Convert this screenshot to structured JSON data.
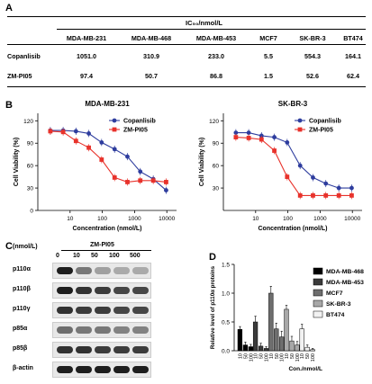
{
  "panels": {
    "A": "A",
    "B": "B",
    "C": "C",
    "D": "D"
  },
  "table": {
    "unit_label": "IC₅₀/nmol/L",
    "columns": [
      "MDA-MB-231",
      "MDA-MB-468",
      "MDA-MB-453",
      "MCF7",
      "SK-BR-3",
      "BT474"
    ],
    "rows": [
      {
        "label": "Copanlisib",
        "values": [
          "1051.0",
          "310.9",
          "233.0",
          "5.5",
          "554.3",
          "164.1"
        ]
      },
      {
        "label": "ZM-PI05",
        "values": [
          "97.4",
          "50.7",
          "86.8",
          "1.5",
          "52.6",
          "62.4"
        ]
      }
    ]
  },
  "chart_data": [
    {
      "type": "scatter",
      "title": "MDA-MB-231",
      "xlabel": "Concentration (nmol/L)",
      "ylabel": "Cell Viability (%)",
      "xscale": "log",
      "xlim": [
        1,
        20000
      ],
      "ylim": [
        0,
        130
      ],
      "yticks": [
        0,
        30,
        60,
        90,
        120
      ],
      "xticks": [
        10,
        100,
        1000,
        10000
      ],
      "legend": "top-right",
      "series": [
        {
          "name": "Copanlisib",
          "color": "#2e3d9e",
          "marker": "circle",
          "x": [
            2.44,
            6.1,
            15.2,
            38,
            95,
            240,
            600,
            1500,
            3800,
            9500
          ],
          "y": [
            107,
            107,
            106,
            103,
            91,
            82,
            72,
            52,
            42,
            27
          ]
        },
        {
          "name": "ZM-PI05",
          "color": "#e8322b",
          "marker": "square",
          "x": [
            2.44,
            6.1,
            15.2,
            38,
            95,
            240,
            600,
            1500,
            3800,
            9500
          ],
          "y": [
            106,
            105,
            93,
            84,
            68,
            44,
            38,
            40,
            40,
            38
          ]
        }
      ]
    },
    {
      "type": "scatter",
      "title": "SK-BR-3",
      "xlabel": "Concentration (nmol/L)",
      "ylabel": "Cell Viability (%)",
      "xscale": "log",
      "xlim": [
        1,
        20000
      ],
      "ylim": [
        0,
        130
      ],
      "yticks": [
        30,
        60,
        90,
        120
      ],
      "xticks": [
        10,
        100,
        1000,
        10000
      ],
      "legend": "top-right",
      "series": [
        {
          "name": "Copanlisib",
          "color": "#2e3d9e",
          "marker": "circle",
          "x": [
            2.44,
            6.1,
            15.2,
            38,
            95,
            240,
            600,
            1500,
            3800,
            9500
          ],
          "y": [
            104,
            104,
            100,
            98,
            91,
            60,
            44,
            36,
            30,
            30
          ]
        },
        {
          "name": "ZM-PI05",
          "color": "#e8322b",
          "marker": "square",
          "x": [
            2.44,
            6.1,
            15.2,
            38,
            95,
            240,
            600,
            1500,
            3800,
            9500
          ],
          "y": [
            98,
            97,
            95,
            80,
            45,
            20,
            20,
            20,
            20,
            20
          ]
        }
      ]
    },
    {
      "type": "bar",
      "ylabel": "Relative level of p110α proteins",
      "xlabel": "Con./nmol/L",
      "ylim": [
        0,
        1.5
      ],
      "yticks": [
        0,
        0.5,
        1.0,
        1.5
      ],
      "ytick_labels": [
        "0.0",
        "0.5",
        "1.0",
        "1.5"
      ],
      "categories": [
        "10",
        "50",
        "100"
      ],
      "legend": "right",
      "series": [
        {
          "name": "MDA-MB-468",
          "color": "#000000",
          "values": [
            0.37,
            0.1,
            0.07
          ]
        },
        {
          "name": "MDA-MB-453",
          "color": "#3a3a3a",
          "values": [
            0.5,
            0.08,
            0.04
          ]
        },
        {
          "name": "MCF7",
          "color": "#6e6e6e",
          "values": [
            1.0,
            0.38,
            0.24
          ]
        },
        {
          "name": "SK-BR-3",
          "color": "#a8a8a8",
          "values": [
            0.72,
            0.17,
            0.1
          ]
        },
        {
          "name": "BT474",
          "color": "#f2f2f2",
          "values": [
            0.38,
            0.06,
            0.02
          ]
        }
      ],
      "errors": [
        [
          0.05,
          0.05,
          0.04
        ],
        [
          0.1,
          0.05,
          0.03
        ],
        [
          0.12,
          0.1,
          0.1
        ],
        [
          0.07,
          0.08,
          0.06
        ],
        [
          0.08,
          0.04,
          0.02
        ]
      ]
    }
  ],
  "western": {
    "unit": "(nmol/L)",
    "drug": "ZM-PI05",
    "concentrations": [
      "0",
      "10",
      "50",
      "100",
      "500"
    ],
    "proteins": [
      "p110α",
      "p110β",
      "p110γ",
      "p85α",
      "p85β",
      "β-actin"
    ],
    "intensity": [
      [
        1.0,
        0.55,
        0.35,
        0.3,
        0.3
      ],
      [
        1.0,
        0.9,
        0.85,
        0.8,
        0.8
      ],
      [
        0.9,
        0.85,
        0.85,
        0.8,
        0.8
      ],
      [
        0.6,
        0.55,
        0.55,
        0.5,
        0.5
      ],
      [
        0.9,
        0.9,
        0.85,
        0.85,
        0.85
      ],
      [
        1.0,
        1.0,
        1.0,
        1.0,
        1.0
      ]
    ]
  }
}
